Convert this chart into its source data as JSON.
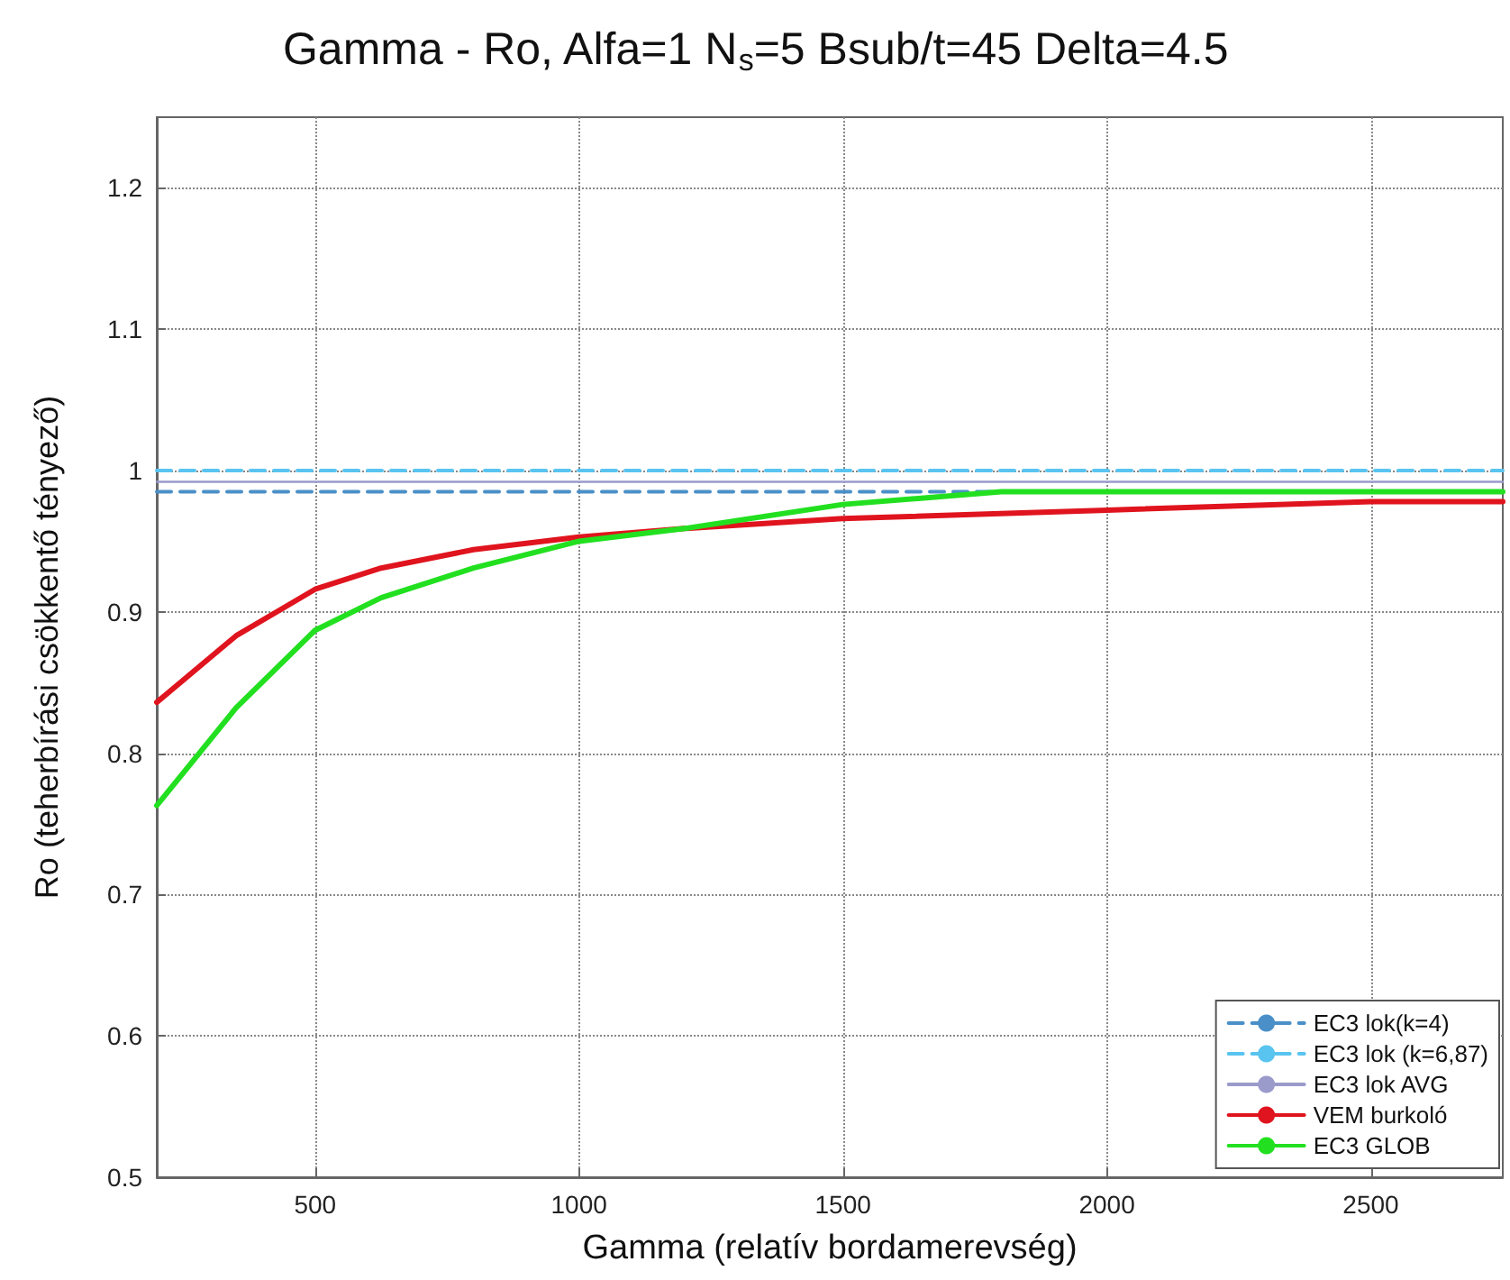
{
  "chart_data": {
    "type": "line",
    "title": "Gamma - Ro, Alfa=1 N$_{s}$=5 Bsub/t=45 Delta=4.5",
    "xlabel": "Gamma (relatív bordamerevség)",
    "ylabel": "Ro (teherbírási csökkentő tényező)",
    "xlim": [
      200,
      2750
    ],
    "xticks": [
      500,
      1000,
      1500,
      2000,
      2500
    ],
    "ylim": [
      0.5,
      1.25
    ],
    "yticks": [
      0.5,
      0.6,
      0.7,
      0.8,
      0.9,
      1,
      1.1,
      1.2
    ],
    "grid": true,
    "legend": "bottom right",
    "marker": "none",
    "series": [
      {
        "name": "EC3 lok(k=4)",
        "color": "#4a8fc8",
        "line_style": "dashed",
        "x": [
          200,
          2750
        ],
        "values": [
          0.985,
          0.985
        ]
      },
      {
        "name": "EC3 lok (k=6,87)",
        "color": "#59c4f0",
        "line_style": "dashed",
        "x": [
          200,
          2750
        ],
        "values": [
          1.0,
          1.0
        ]
      },
      {
        "name": "EC3 lok AVG",
        "color": "#9a9acb",
        "line_style": "solid",
        "x": [
          200,
          2750
        ],
        "values": [
          0.992,
          0.992
        ]
      },
      {
        "name": "VEM burkoló",
        "color": "#e0141e",
        "line_style": "solid",
        "x": [
          200,
          350,
          500,
          625,
          800,
          1000,
          1200,
          1500,
          2000,
          2500,
          2750
        ],
        "values": [
          0.836,
          0.883,
          0.916,
          0.931,
          0.944,
          0.953,
          0.959,
          0.966,
          0.972,
          0.978,
          0.978
        ]
      },
      {
        "name": "EC3 GLOB",
        "color": "#22e020",
        "line_style": "solid",
        "x": [
          200,
          350,
          500,
          625,
          800,
          1000,
          1200,
          1500,
          1800,
          2000,
          2500,
          2750
        ],
        "values": [
          0.763,
          0.832,
          0.887,
          0.91,
          0.931,
          0.95,
          0.959,
          0.976,
          0.985,
          0.985,
          0.985,
          0.985
        ]
      }
    ]
  }
}
